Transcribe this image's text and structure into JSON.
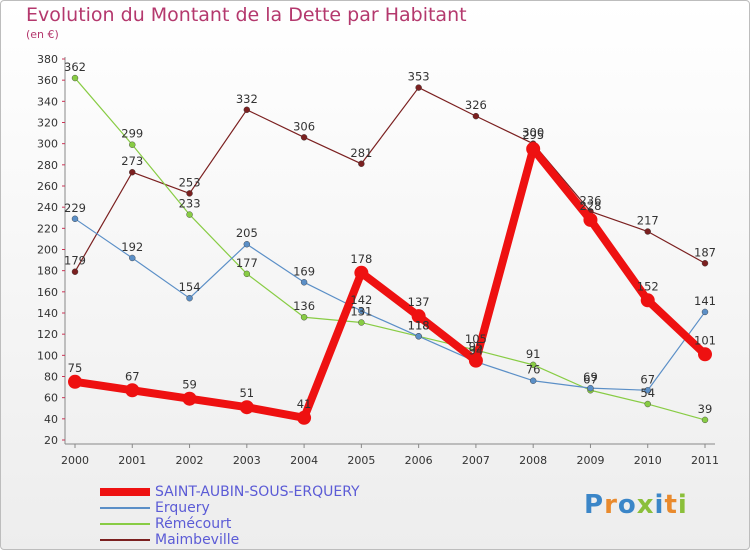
{
  "title": "Evolution du Montant de la Dette par Habitant",
  "subtitle": "(en €)",
  "logo_text": "Proxiti",
  "chart_data": {
    "type": "line",
    "title": "Evolution du Montant de la Dette par Habitant",
    "ylabel": "(en €)",
    "xlabel": "",
    "categories": [
      "2000",
      "2001",
      "2002",
      "2003",
      "2004",
      "2005",
      "2006",
      "2007",
      "2008",
      "2009",
      "2010",
      "2011"
    ],
    "ylim": [
      20,
      380
    ],
    "yticks": [
      20,
      40,
      60,
      80,
      100,
      120,
      140,
      160,
      180,
      200,
      220,
      240,
      260,
      280,
      300,
      320,
      340,
      360,
      380
    ],
    "grid": false,
    "legend": "bottom-left",
    "series": [
      {
        "name": "Maimbeville",
        "color": "#7b2020",
        "values": [
          179,
          273,
          253,
          332,
          306,
          281,
          353,
          326,
          300,
          236,
          217,
          187
        ]
      },
      {
        "name": "Rémécourt",
        "color": "#88cc44",
        "values": [
          362,
          299,
          233,
          177,
          136,
          131,
          118,
          105,
          91,
          67,
          54,
          39
        ]
      },
      {
        "name": "Erquery",
        "color": "#5b8fc7",
        "values": [
          229,
          192,
          154,
          205,
          169,
          142,
          118,
          94,
          76,
          69,
          67,
          141
        ]
      },
      {
        "name": "SAINT-AUBIN-SOUS-ERQUERY",
        "color": "#ee1111",
        "values": [
          75,
          67,
          59,
          51,
          41,
          178,
          137,
          95,
          295,
          228,
          152,
          101
        ]
      }
    ]
  }
}
